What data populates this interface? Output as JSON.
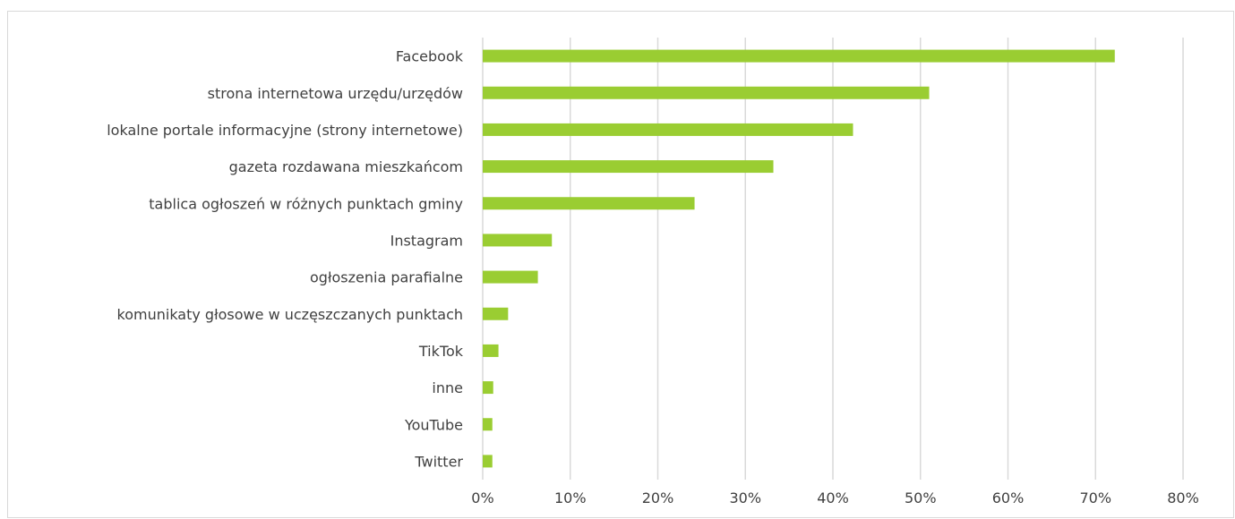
{
  "chart_data": {
    "type": "bar",
    "orientation": "horizontal",
    "title": "",
    "xlabel": "",
    "ylabel": "",
    "categories": [
      "Facebook",
      "strona internetowa urzędu/urzędów",
      "lokalne portale informacyjne (strony internetowe)",
      "gazeta rozdawana mieszkańcom",
      "tablica ogłoszeń w różnych punktach gminy",
      "Instagram",
      "ogłoszenia parafialne",
      "komunikaty głosowe w uczęszczanych punktach",
      "TikTok",
      "inne",
      "YouTube",
      "Twitter"
    ],
    "values": [
      72.2,
      51.0,
      42.3,
      33.2,
      24.2,
      7.9,
      6.3,
      2.9,
      1.8,
      1.2,
      1.1,
      1.1
    ],
    "xlim": [
      0,
      80
    ],
    "xticks": [
      "0%",
      "10%",
      "20%",
      "30%",
      "40%",
      "50%",
      "60%",
      "70%",
      "80%"
    ],
    "grid": true,
    "bar_color": "#9acd32",
    "grid_color": "#d9d9d9"
  },
  "title_fragment": "                "
}
